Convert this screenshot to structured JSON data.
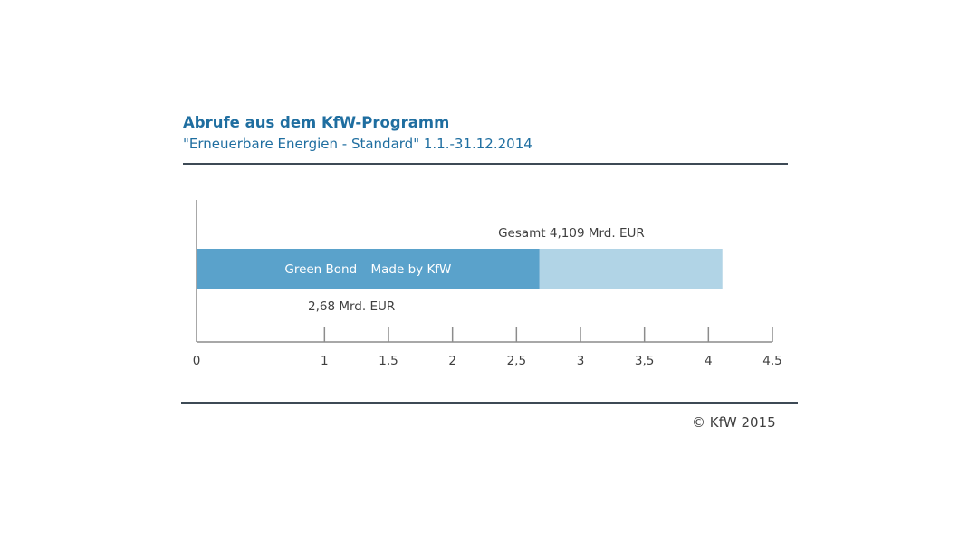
{
  "chart_data": {
    "type": "bar",
    "orientation": "horizontal",
    "stacked": true,
    "title": "Abrufe aus dem KfW-Programm",
    "subtitle": "\"Erneuerbare Energien - Standard\" 1.1.-31.12.2014",
    "x_ticks": [
      "0",
      "1",
      "1,5",
      "2",
      "2,5",
      "3",
      "3,5",
      "4",
      "4,5"
    ],
    "xlim": [
      0,
      4.5
    ],
    "grid": false,
    "series": [
      {
        "name": "Green Bond – Made by KfW",
        "value": 2.68,
        "color": "#5aa2cb"
      },
      {
        "value": 1.429,
        "color": "#b1d4e6"
      }
    ],
    "total": 4.109,
    "annotations": {
      "total_label": "Gesamt 4,109 Mrd. EUR",
      "part_label": "2,68 Mrd. EUR"
    }
  },
  "footer": {
    "copyright": "© KfW 2015"
  }
}
